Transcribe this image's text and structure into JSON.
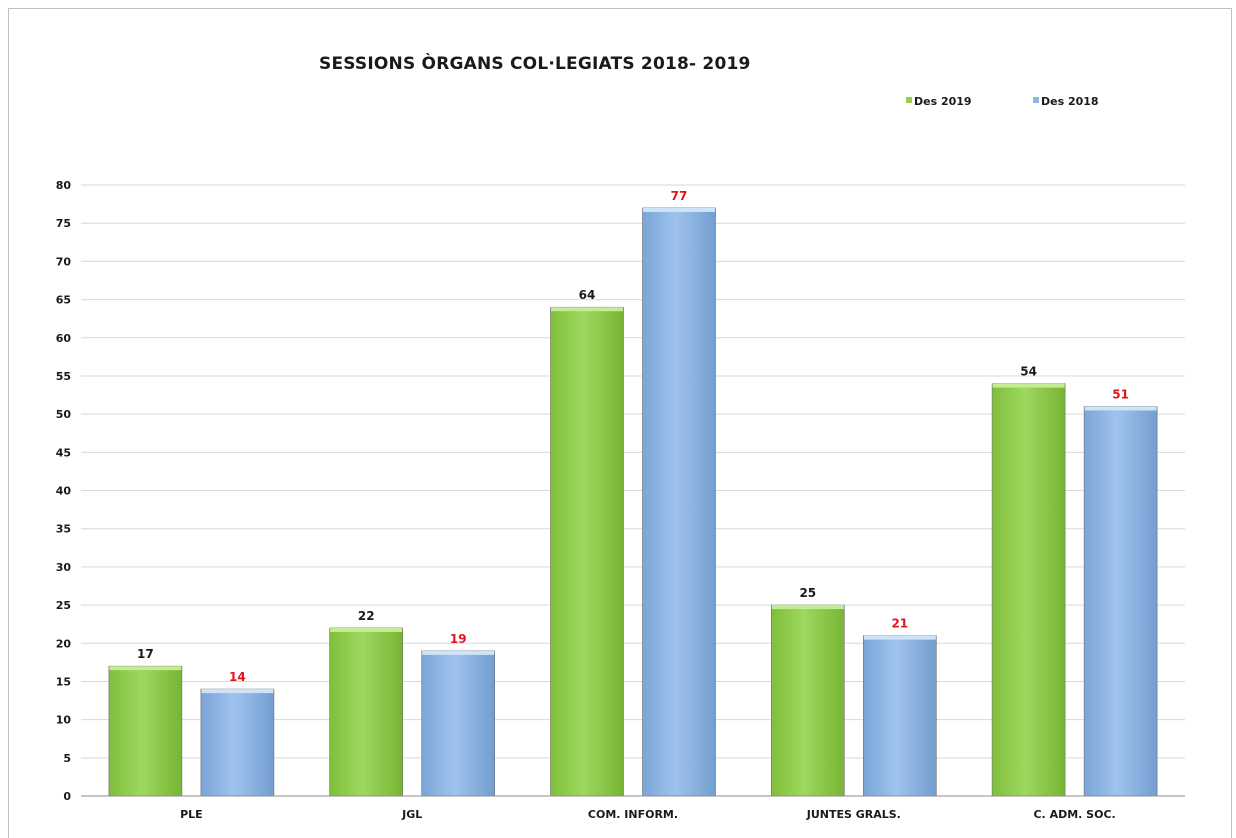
{
  "chart_data": {
    "type": "bar",
    "title": "SESSIONS  ÒRGANS COL·LEGIATS 2018- 2019",
    "categories": [
      "PLE",
      "JGL",
      "COM. INFORM.",
      "JUNTES GRALS.",
      "C. ADM. SOC."
    ],
    "series": [
      {
        "name": "Des 2019",
        "values": [
          17,
          22,
          64,
          25,
          54
        ],
        "color": "#92d050",
        "label_color": "#1a1a1a"
      },
      {
        "name": "Des 2018",
        "values": [
          14,
          19,
          77,
          21,
          51
        ],
        "color": "#8db4e2",
        "label_color": "#e0141e"
      }
    ],
    "ylim": [
      0,
      80
    ],
    "yticks": [
      "0",
      "5",
      "10",
      "15",
      "20",
      "25",
      "30",
      "35",
      "40",
      "45",
      "50",
      "55",
      "60",
      "65",
      "70",
      "75",
      "80"
    ],
    "grid": true,
    "legend": "top-right",
    "xlabel": "",
    "ylabel": ""
  }
}
